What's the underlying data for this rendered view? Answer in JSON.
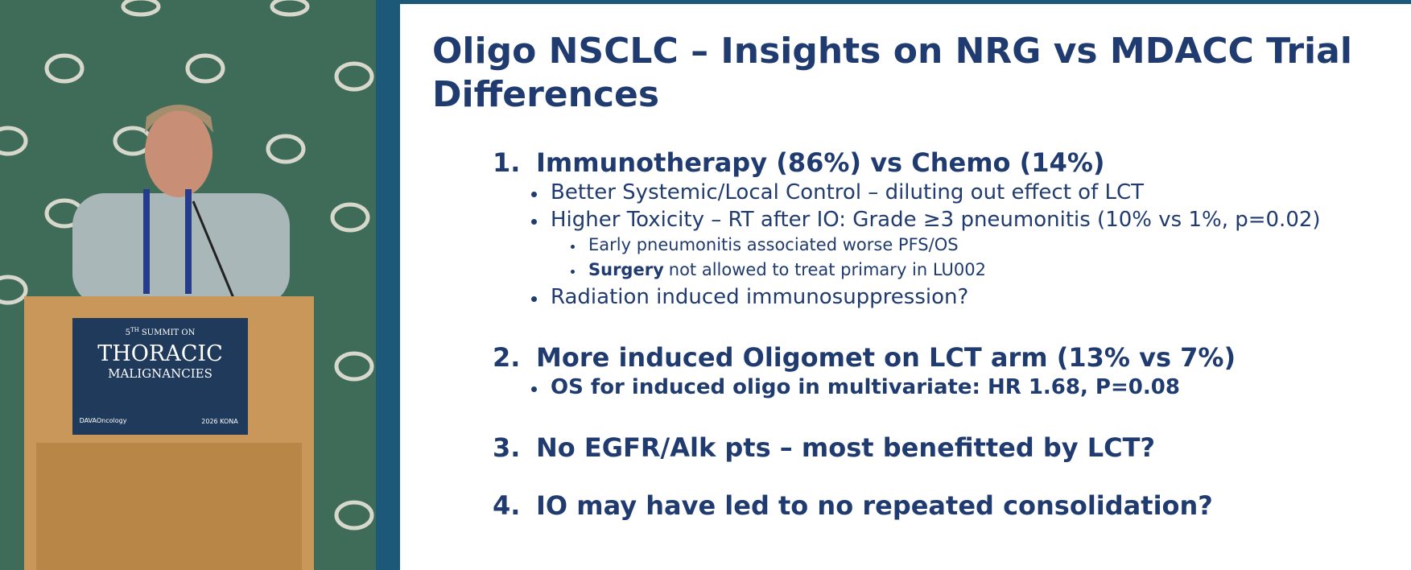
{
  "podium_sign": {
    "ordinal": "5",
    "ordinal_suffix": "TH",
    "summit_line": "SUMMIT ON",
    "event_line1": "THORACIC",
    "event_line2": "MALIGNANCIES",
    "sponsor": "DAVAOncology",
    "location": "2026 KONA"
  },
  "slide": {
    "title": "Oligo NSCLC – Insights on NRG vs MDACC Trial Differences",
    "items": [
      {
        "number": "1.",
        "text": "Immunotherapy (86%) vs Chemo (14%)",
        "bullets": [
          {
            "text": "Better Systemic/Local Control – diluting out effect of LCT"
          },
          {
            "text": "Higher Toxicity – RT after IO: Grade ≥3 pneumonitis (10% vs 1%, p=0.02)",
            "sub": [
              {
                "text": "Early pneumonitis associated worse PFS/OS"
              },
              {
                "bold": "Surgery",
                "text": "not allowed to treat primary in LU002"
              }
            ]
          },
          {
            "text": "Radiation induced immunosuppression?"
          }
        ]
      },
      {
        "number": "2.",
        "text": "More induced Oligomet on LCT arm (13% vs 7%)",
        "bullets": [
          {
            "text": "OS for induced oligo in multivariate: HR 1.68, P=0.08",
            "bold": true
          }
        ]
      },
      {
        "number": "3.",
        "text": "No EGFR/Alk pts – most benefitted by LCT?"
      },
      {
        "number": "4.",
        "text": "IO may have led to no repeated consolidation?"
      }
    ]
  }
}
